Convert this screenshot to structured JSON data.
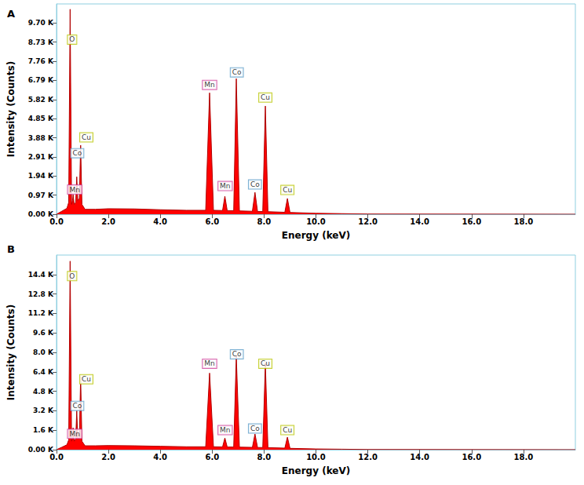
{
  "chart_data": [
    {
      "type": "area",
      "title": "A",
      "xlabel": "Energy (keV)",
      "ylabel": "Intensity (Counts)",
      "color": "#ff0000",
      "grid": false,
      "x": [
        0,
        0.2,
        0.4,
        0.47,
        0.525,
        0.58,
        0.62,
        0.64,
        0.68,
        0.74,
        0.78,
        0.82,
        0.88,
        0.93,
        0.98,
        1.1,
        1.5,
        2.0,
        3.0,
        4.0,
        5.0,
        5.75,
        5.9,
        6.05,
        6.4,
        6.49,
        6.58,
        6.83,
        6.93,
        7.05,
        7.55,
        7.65,
        7.75,
        7.95,
        8.05,
        8.15,
        8.8,
        8.9,
        9.0,
        10.0,
        11.0,
        12.0,
        20.0
      ],
      "values": [
        0,
        150,
        300,
        600,
        10400,
        500,
        700,
        1000,
        500,
        600,
        1900,
        700,
        800,
        3500,
        500,
        250,
        250,
        280,
        270,
        230,
        200,
        200,
        6160,
        200,
        190,
        915,
        180,
        180,
        6880,
        170,
        150,
        1110,
        140,
        140,
        5490,
        130,
        100,
        800,
        90,
        50,
        30,
        10,
        0
      ],
      "xlim": [
        0,
        20
      ],
      "xticks": [
        {
          "value": 0,
          "label": "0.0"
        },
        {
          "value": 2,
          "label": "2.0"
        },
        {
          "value": 4,
          "label": "4.0"
        },
        {
          "value": 6,
          "label": "6.0"
        },
        {
          "value": 8,
          "label": "8.0"
        },
        {
          "value": 10,
          "label": "10.0"
        },
        {
          "value": 12,
          "label": "12.0"
        },
        {
          "value": 14,
          "label": "14.0"
        },
        {
          "value": 16,
          "label": "16.0"
        },
        {
          "value": 18,
          "label": "18.0"
        }
      ],
      "ylim": [
        0,
        10670
      ],
      "yticks": [
        {
          "value": 0,
          "label": "0.00 K"
        },
        {
          "value": 970,
          "label": "0.97 K"
        },
        {
          "value": 1940,
          "label": "1.94 K"
        },
        {
          "value": 2910,
          "label": "2.91 K"
        },
        {
          "value": 3880,
          "label": "3.88 K"
        },
        {
          "value": 4850,
          "label": "4.85 K"
        },
        {
          "value": 5820,
          "label": "5.82 K"
        },
        {
          "value": 6790,
          "label": "6.79 K"
        },
        {
          "value": 7760,
          "label": "7.76 K"
        },
        {
          "value": 8730,
          "label": "8.73 K"
        },
        {
          "value": 9700,
          "label": "9.70 K"
        }
      ],
      "annotations": [
        {
          "text": "O",
          "x": 0.6,
          "y": 8860
        },
        {
          "text": "Cu",
          "x": 1.15,
          "y": 3900
        },
        {
          "text": "Co",
          "x": 0.8,
          "y": 3100
        },
        {
          "text": "Mn",
          "x": 0.7,
          "y": 1250
        },
        {
          "text": "Mn",
          "x": 5.9,
          "y": 6560
        },
        {
          "text": "Mn",
          "x": 6.5,
          "y": 1430
        },
        {
          "text": "Co",
          "x": 6.95,
          "y": 7200
        },
        {
          "text": "Co",
          "x": 7.65,
          "y": 1510
        },
        {
          "text": "Cu",
          "x": 8.05,
          "y": 5920
        },
        {
          "text": "Cu",
          "x": 8.9,
          "y": 1230
        }
      ]
    },
    {
      "type": "area",
      "title": "B",
      "xlabel": "Energy (keV)",
      "ylabel": "Intensity (Counts)",
      "color": "#ff0000",
      "grid": false,
      "x": [
        0,
        0.2,
        0.4,
        0.47,
        0.525,
        0.58,
        0.62,
        0.64,
        0.68,
        0.74,
        0.78,
        0.82,
        0.88,
        0.93,
        0.98,
        1.1,
        1.5,
        2.0,
        3.0,
        4.0,
        5.0,
        5.75,
        5.9,
        6.05,
        6.4,
        6.49,
        6.58,
        6.83,
        6.93,
        7.05,
        7.55,
        7.65,
        7.75,
        7.95,
        8.05,
        8.15,
        8.8,
        8.9,
        9.0,
        10.0,
        11.0,
        12.0,
        20.0
      ],
      "values": [
        0,
        200,
        400,
        800,
        15500,
        700,
        1000,
        1800,
        700,
        900,
        3200,
        900,
        1000,
        6000,
        700,
        320,
        320,
        340,
        320,
        280,
        240,
        240,
        6300,
        240,
        230,
        960,
        220,
        220,
        7700,
        210,
        190,
        1290,
        180,
        180,
        7100,
        170,
        130,
        1030,
        110,
        60,
        40,
        15,
        0
      ],
      "xlim": [
        0,
        20
      ],
      "xticks": [
        {
          "value": 0,
          "label": "0.0"
        },
        {
          "value": 2,
          "label": "2.0"
        },
        {
          "value": 4,
          "label": "4.0"
        },
        {
          "value": 6,
          "label": "6.0"
        },
        {
          "value": 8,
          "label": "8.0"
        },
        {
          "value": 10,
          "label": "10.0"
        },
        {
          "value": 12,
          "label": "12.0"
        },
        {
          "value": 14,
          "label": "14.0"
        },
        {
          "value": 16,
          "label": "16.0"
        },
        {
          "value": 18,
          "label": "18.0"
        }
      ],
      "ylim": [
        0,
        16000
      ],
      "yticks": [
        {
          "value": 0,
          "label": "0.00 K"
        },
        {
          "value": 1600,
          "label": "1.6 K"
        },
        {
          "value": 3200,
          "label": "3.2 K"
        },
        {
          "value": 4800,
          "label": "4.8 K"
        },
        {
          "value": 6400,
          "label": "6.4 K"
        },
        {
          "value": 8000,
          "label": "8.0 K"
        },
        {
          "value": 9600,
          "label": "9.6 K"
        },
        {
          "value": 11200,
          "label": "11.2 K"
        },
        {
          "value": 12800,
          "label": "12.8 K"
        },
        {
          "value": 14400,
          "label": "14.4 K"
        }
      ],
      "annotations": [
        {
          "text": "O",
          "x": 0.6,
          "y": 14270
        },
        {
          "text": "Cu",
          "x": 1.15,
          "y": 5790
        },
        {
          "text": "Co",
          "x": 0.8,
          "y": 3600
        },
        {
          "text": "Mn",
          "x": 0.7,
          "y": 1300
        },
        {
          "text": "Mn",
          "x": 5.9,
          "y": 7070
        },
        {
          "text": "Mn",
          "x": 6.5,
          "y": 1610
        },
        {
          "text": "Co",
          "x": 6.95,
          "y": 7840
        },
        {
          "text": "Co",
          "x": 7.65,
          "y": 1740
        },
        {
          "text": "Cu",
          "x": 8.05,
          "y": 7070
        },
        {
          "text": "Cu",
          "x": 8.9,
          "y": 1610
        }
      ]
    }
  ]
}
